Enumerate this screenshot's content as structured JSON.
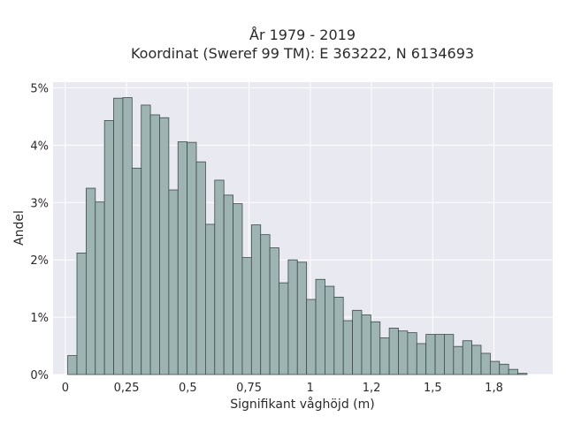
{
  "chart_data": {
    "type": "bar",
    "title_line1": "År 1979 - 2019",
    "title_line2": "Koordinat (Sweref 99 TM): E 363222, N 6134693",
    "xlabel": "Signifikant våghöjd (m)",
    "ylabel": "Andel",
    "xlim": [
      -0.05,
      1.99
    ],
    "ylim": [
      0,
      5.1
    ],
    "grid": true,
    "bin_start": 0.01,
    "bin_width": 0.0375,
    "values": [
      0.33,
      2.12,
      3.25,
      3.01,
      4.43,
      4.82,
      4.83,
      3.6,
      4.7,
      4.53,
      4.48,
      3.22,
      4.06,
      4.05,
      3.71,
      2.62,
      3.39,
      3.13,
      2.98,
      2.04,
      2.61,
      2.44,
      2.21,
      1.6,
      2.0,
      1.96,
      1.31,
      1.66,
      1.54,
      1.35,
      0.94,
      1.12,
      1.04,
      0.92,
      0.64,
      0.81,
      0.76,
      0.73,
      0.54,
      0.7,
      0.7,
      0.7,
      0.49,
      0.59,
      0.51,
      0.37,
      0.23,
      0.18,
      0.09,
      0.02
    ],
    "x_ticks": [
      {
        "value": 0,
        "label": "0"
      },
      {
        "value": 0.25,
        "label": "0,25"
      },
      {
        "value": 0.5,
        "label": "0,5"
      },
      {
        "value": 0.75,
        "label": "0,75"
      },
      {
        "value": 1,
        "label": "1"
      },
      {
        "value": 1.25,
        "label": "1,2"
      },
      {
        "value": 1.5,
        "label": "1,5"
      },
      {
        "value": 1.75,
        "label": "1,8"
      }
    ],
    "y_ticks": [
      {
        "value": 0,
        "label": "0%"
      },
      {
        "value": 1,
        "label": "1%"
      },
      {
        "value": 2,
        "label": "2%"
      },
      {
        "value": 3,
        "label": "3%"
      },
      {
        "value": 4,
        "label": "4%"
      },
      {
        "value": 5,
        "label": "5%"
      }
    ],
    "colors": {
      "bar_fill": "#9db4b3",
      "bar_stroke": "#3d4a4a",
      "plot_bg": "#e9e9f1",
      "grid": "#ffffff"
    }
  }
}
